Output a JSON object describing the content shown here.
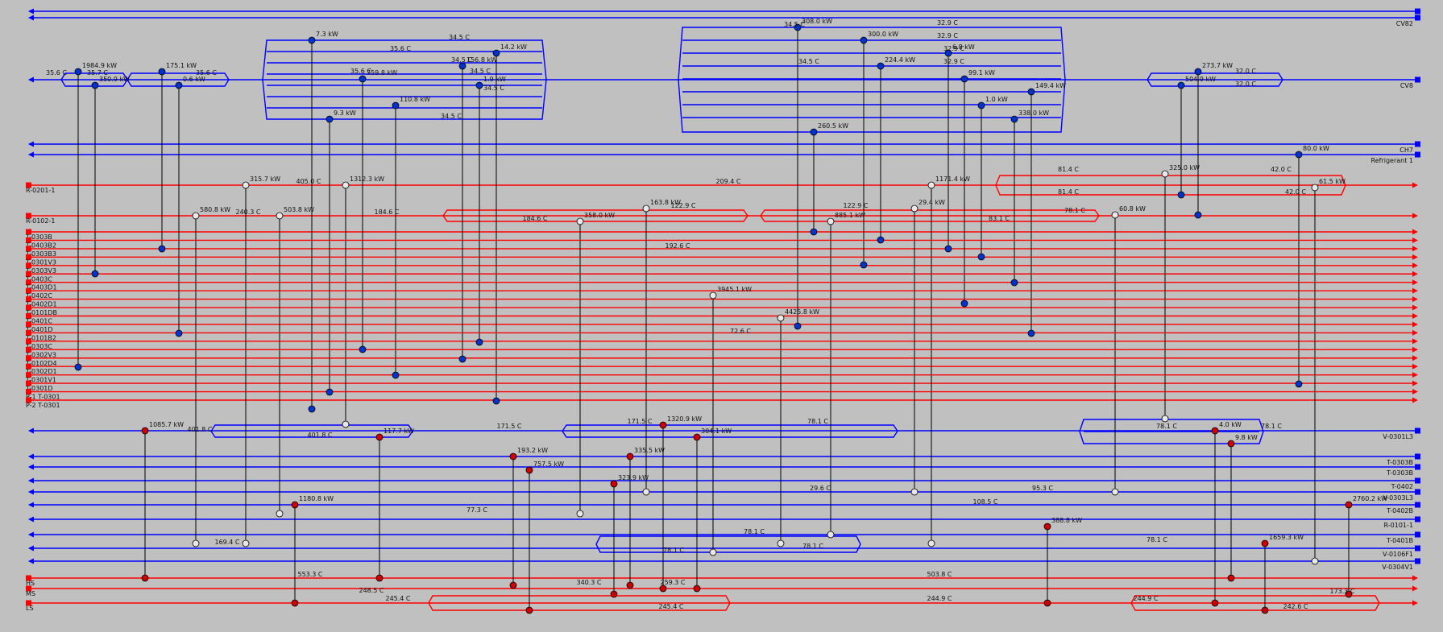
{
  "diagram": {
    "colors": {
      "background": "#c0c0c0",
      "cold_stream": "#0000ff",
      "hot_stream": "#ff0000",
      "connector": "#000000",
      "cooler_node": "#0033cc",
      "heater_node": "#cc0000",
      "exchanger_node": "#e8e8e8"
    },
    "cold_streams_top": [
      {
        "id": "s0",
        "name": ""
      },
      {
        "id": "s1",
        "name": "CV82"
      },
      {
        "id": "s2",
        "name": "CV8"
      },
      {
        "id": "s3",
        "name": "CH7"
      },
      {
        "id": "s4",
        "name": "Refrigerant 1"
      }
    ],
    "hot_process_streams": [
      {
        "id": "r1",
        "name": "R-0201-1"
      },
      {
        "id": "r2",
        "name": "R-0102-1"
      }
    ],
    "hot_header_streams": [
      {
        "id": "h1",
        "name": "T-0303B"
      },
      {
        "id": "h2",
        "name": "T-0403B2"
      },
      {
        "id": "h3",
        "name": "T-0303B3"
      },
      {
        "id": "h4",
        "name": "T-0301V3"
      },
      {
        "id": "h5",
        "name": "T-0303V3"
      },
      {
        "id": "h6",
        "name": "T-0403C"
      },
      {
        "id": "h7",
        "name": "T-0403D1"
      },
      {
        "id": "h8",
        "name": "T-0402C"
      },
      {
        "id": "h9",
        "name": "T-0402D1"
      },
      {
        "id": "h10",
        "name": "T-0101DB"
      },
      {
        "id": "h11",
        "name": "T-0401C"
      },
      {
        "id": "h12",
        "name": "T-0401D"
      },
      {
        "id": "h13",
        "name": "T-0101B2"
      },
      {
        "id": "h14",
        "name": "T-0303C"
      },
      {
        "id": "h15",
        "name": "T-0302V3"
      },
      {
        "id": "h16",
        "name": "T-0102D4"
      },
      {
        "id": "h17",
        "name": "T-0302D1"
      },
      {
        "id": "h18",
        "name": "T-0301V1"
      },
      {
        "id": "h19",
        "name": "T-0301D"
      },
      {
        "id": "h20",
        "name": "P-1 T-0301"
      },
      {
        "id": "h21",
        "name": "P-2 T-0301"
      }
    ],
    "cold_process_streams": [
      {
        "id": "c1",
        "name": "V-0301L3"
      },
      {
        "id": "c2",
        "name": "T-0303B"
      },
      {
        "id": "c3",
        "name": "T-0303B"
      },
      {
        "id": "c4",
        "name": "T-0402"
      },
      {
        "id": "c5",
        "name": "V-0303L3"
      },
      {
        "id": "c6",
        "name": "T-0402B"
      },
      {
        "id": "c7",
        "name": "R-0101-1"
      },
      {
        "id": "c8",
        "name": "T-0401B"
      },
      {
        "id": "c9",
        "name": "V-0106F1"
      },
      {
        "id": "c10",
        "name": "V-0304V1"
      }
    ],
    "utility_streams": [
      {
        "id": "u1",
        "name": "HS"
      },
      {
        "id": "u2",
        "name": "MS"
      },
      {
        "id": "u3",
        "name": "LS"
      }
    ],
    "duties": [
      {
        "id": "d1",
        "text": "1984.9 kW"
      },
      {
        "id": "d2",
        "text": "350.9 kW"
      },
      {
        "id": "d3",
        "text": "175.1 kW"
      },
      {
        "id": "d4",
        "text": "0.6 kW"
      },
      {
        "id": "d5",
        "text": "7.3 kW"
      },
      {
        "id": "d6",
        "text": "759.8 kW"
      },
      {
        "id": "d7",
        "text": "110.8 kW"
      },
      {
        "id": "d8",
        "text": "9.3 kW"
      },
      {
        "id": "d9",
        "text": "156.8 kW"
      },
      {
        "id": "d10",
        "text": "1.9 kW"
      },
      {
        "id": "d11",
        "text": "14.2 kW"
      },
      {
        "id": "d12",
        "text": "308.0 kW"
      },
      {
        "id": "d13",
        "text": "300.0 kW"
      },
      {
        "id": "d14",
        "text": "224.4 kW"
      },
      {
        "id": "d15",
        "text": "6.8 kW"
      },
      {
        "id": "d16",
        "text": "99.1 kW"
      },
      {
        "id": "d17",
        "text": "1.0 kW"
      },
      {
        "id": "d18",
        "text": "338.0 kW"
      },
      {
        "id": "d19",
        "text": "149.4 kW"
      },
      {
        "id": "d20",
        "text": "260.5 kW"
      },
      {
        "id": "d21",
        "text": "504.9 kW"
      },
      {
        "id": "d22",
        "text": "273.7 kW"
      },
      {
        "id": "d23",
        "text": "80.0 kW"
      },
      {
        "id": "d24",
        "text": "315.7 kW"
      },
      {
        "id": "d25",
        "text": "1312.3 kW"
      },
      {
        "id": "d26",
        "text": "1171.4 kW"
      },
      {
        "id": "d27",
        "text": "325.0 kW"
      },
      {
        "id": "d28",
        "text": "61.5 kW"
      },
      {
        "id": "d29",
        "text": "580.8 kW"
      },
      {
        "id": "d30",
        "text": "503.8 kW"
      },
      {
        "id": "d31",
        "text": "358.0 kW"
      },
      {
        "id": "d32",
        "text": "163.8 kW"
      },
      {
        "id": "d33",
        "text": "885.1 kW"
      },
      {
        "id": "d34",
        "text": "29.4 kW"
      },
      {
        "id": "d35",
        "text": "60.8 kW"
      },
      {
        "id": "d36",
        "text": "3945.1 kW"
      },
      {
        "id": "d37",
        "text": "4425.8 kW"
      },
      {
        "id": "d38",
        "text": "1085.7 kW"
      },
      {
        "id": "d39",
        "text": "117.7 kW"
      },
      {
        "id": "d40",
        "text": "1320.9 kW"
      },
      {
        "id": "d41",
        "text": "304.1 kW"
      },
      {
        "id": "d42",
        "text": "4.0 kW"
      },
      {
        "id": "d43",
        "text": "9.8 kW"
      },
      {
        "id": "d44",
        "text": "193.2 kW"
      },
      {
        "id": "d45",
        "text": "757.5 kW"
      },
      {
        "id": "d46",
        "text": "335.5 kW"
      },
      {
        "id": "d47",
        "text": "323.9 kW"
      },
      {
        "id": "d48",
        "text": "1180.8 kW"
      },
      {
        "id": "d49",
        "text": "2760.2 kW"
      },
      {
        "id": "d50",
        "text": "388.8 kW"
      },
      {
        "id": "d51",
        "text": "1659.3 kW"
      }
    ],
    "temperatures": [
      {
        "id": "t1",
        "text": "35.6 C"
      },
      {
        "id": "t2",
        "text": "35.7 C"
      },
      {
        "id": "t3",
        "text": "35.6 C"
      },
      {
        "id": "t4",
        "text": "34.5 C"
      },
      {
        "id": "t5",
        "text": "35.6 C"
      },
      {
        "id": "t6",
        "text": "34.5 C"
      },
      {
        "id": "t7",
        "text": "34.5 C"
      },
      {
        "id": "t8",
        "text": "35.6 C"
      },
      {
        "id": "t9",
        "text": "34.5 C"
      },
      {
        "id": "t10",
        "text": "34.5 C"
      },
      {
        "id": "t11",
        "text": "32.9 C"
      },
      {
        "id": "t12",
        "text": "32.9 C"
      },
      {
        "id": "t13",
        "text": "34.5 C"
      },
      {
        "id": "t14",
        "text": "32.9 C"
      },
      {
        "id": "t15",
        "text": "32.9 C"
      },
      {
        "id": "t16",
        "text": "34.5 C"
      },
      {
        "id": "t17",
        "text": "32.0 C"
      },
      {
        "id": "t18",
        "text": "32.0 C"
      },
      {
        "id": "t19",
        "text": "209.4 C"
      },
      {
        "id": "t20",
        "text": "405.0 C"
      },
      {
        "id": "t21",
        "text": "81.4 C"
      },
      {
        "id": "t22",
        "text": "81.4 C"
      },
      {
        "id": "t23",
        "text": "42.0 C"
      },
      {
        "id": "t24",
        "text": "42.0 C"
      },
      {
        "id": "t25",
        "text": "240.3 C"
      },
      {
        "id": "t26",
        "text": "184.6 C"
      },
      {
        "id": "t27",
        "text": "184.6 C"
      },
      {
        "id": "t28",
        "text": "122.9 C"
      },
      {
        "id": "t29",
        "text": "122.9 C"
      },
      {
        "id": "t30",
        "text": "83.1 C"
      },
      {
        "id": "t31",
        "text": "78.1 C"
      },
      {
        "id": "t32",
        "text": "192.6 C"
      },
      {
        "id": "t33",
        "text": "72.6 C"
      },
      {
        "id": "t34",
        "text": "401.8 C"
      },
      {
        "id": "t35",
        "text": "401.8 C"
      },
      {
        "id": "t36",
        "text": "171.5 C"
      },
      {
        "id": "t37",
        "text": "171.5 C"
      },
      {
        "id": "t38",
        "text": "78.1 C"
      },
      {
        "id": "t39",
        "text": "78.1 C"
      },
      {
        "id": "t40",
        "text": "78.1 C"
      },
      {
        "id": "t41",
        "text": "29.6 C"
      },
      {
        "id": "t42",
        "text": "95.3 C"
      },
      {
        "id": "t43",
        "text": "77.3 C"
      },
      {
        "id": "t44",
        "text": "108.5 C"
      },
      {
        "id": "t45",
        "text": "169.4 C"
      },
      {
        "id": "t46",
        "text": "78.1 C"
      },
      {
        "id": "t47",
        "text": "78.1 C"
      },
      {
        "id": "t48",
        "text": "78.1 C"
      },
      {
        "id": "t49",
        "text": "78.1 C"
      },
      {
        "id": "t50",
        "text": "553.3 C"
      },
      {
        "id": "t51",
        "text": "503.8 C"
      },
      {
        "id": "t52",
        "text": "340.3 C"
      },
      {
        "id": "t53",
        "text": "259.3 C"
      },
      {
        "id": "t54",
        "text": "248.5 C"
      },
      {
        "id": "t55",
        "text": "245.4 C"
      },
      {
        "id": "t56",
        "text": "245.4 C"
      },
      {
        "id": "t57",
        "text": "244.9 C"
      },
      {
        "id": "t58",
        "text": "244.9 C"
      },
      {
        "id": "t59",
        "text": "173.3 C"
      },
      {
        "id": "t60",
        "text": "242.6 C"
      }
    ]
  }
}
